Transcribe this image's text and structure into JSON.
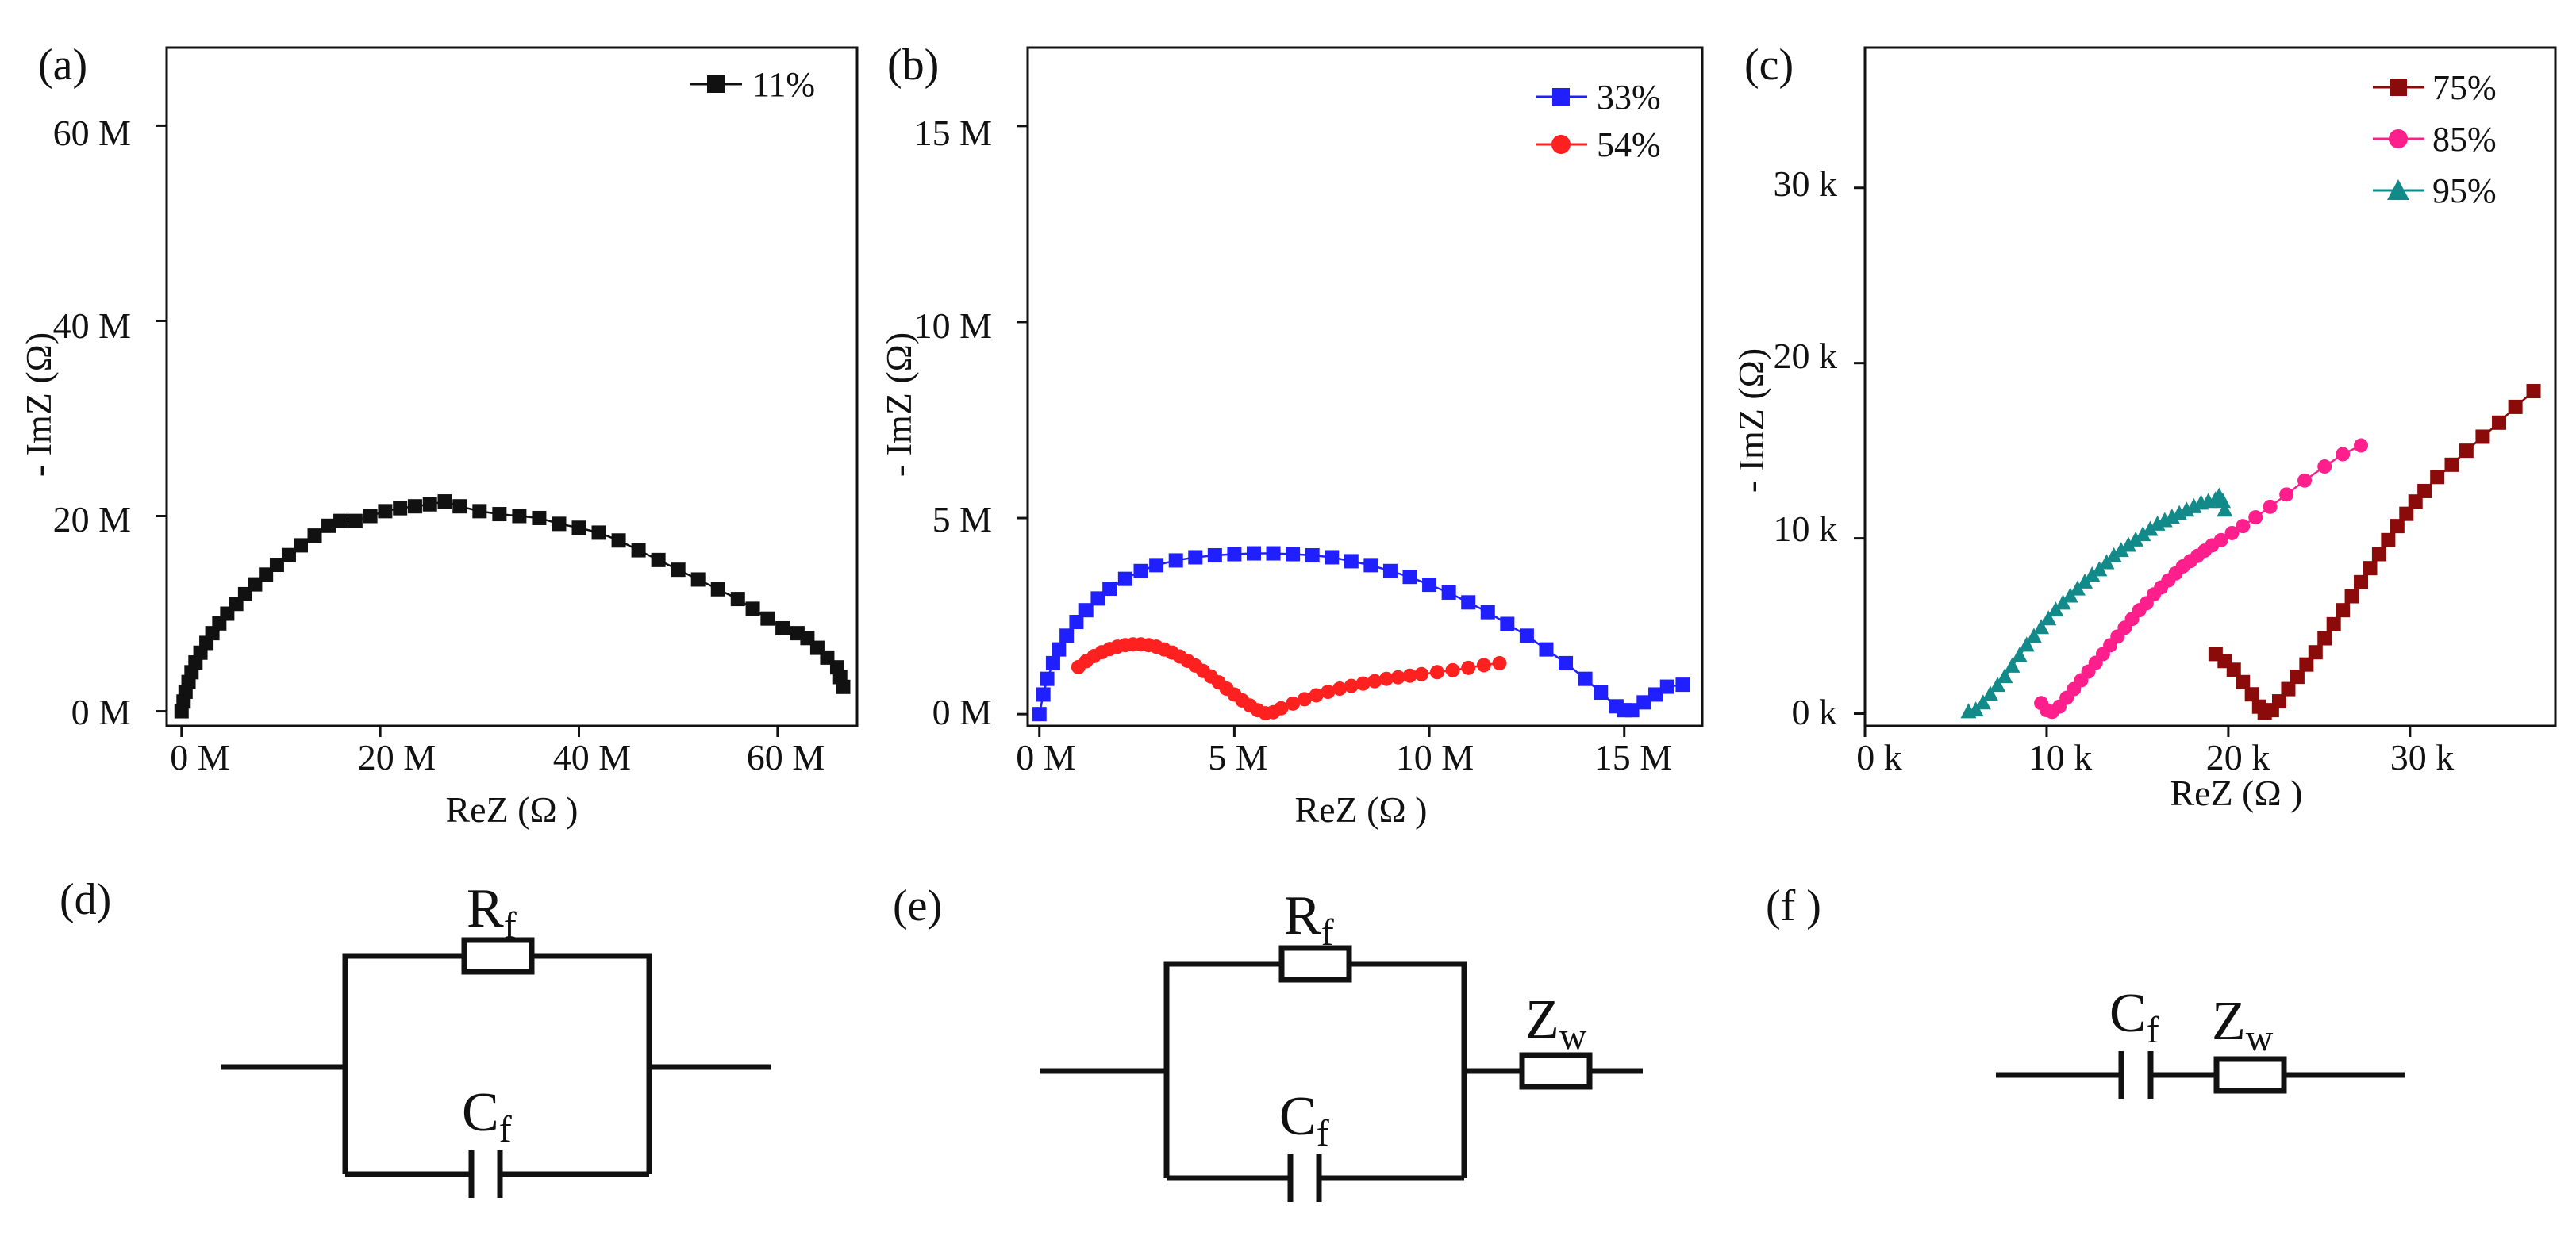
{
  "chart_data": [
    {
      "type": "scatter",
      "panel_label": "(a)",
      "xlabel": "ReZ (Ω )",
      "ylabel": "- ImZ (Ω)",
      "xlim": [
        -1.5,
        68
      ],
      "ylim": [
        -1.5,
        68
      ],
      "xticks": [
        0,
        20,
        40,
        60
      ],
      "xtick_labels": [
        "0 M",
        "20 M",
        "40 M",
        "60 M"
      ],
      "yticks": [
        0,
        20,
        40,
        60
      ],
      "ytick_labels": [
        "0 M",
        "20 M",
        "40 M",
        "60 M"
      ],
      "units": "MΩ",
      "series": [
        {
          "name": "11%",
          "label": "11%",
          "legend_position": "top-right",
          "color": "#111111",
          "marker": "square",
          "points": [
            [
              0,
              0
            ],
            [
              0.2,
              1
            ],
            [
              0.4,
              2
            ],
            [
              0.7,
              3
            ],
            [
              1,
              4
            ],
            [
              1.4,
              5
            ],
            [
              1.9,
              6
            ],
            [
              2.5,
              7
            ],
            [
              3.1,
              8
            ],
            [
              3.8,
              9
            ],
            [
              4.6,
              10
            ],
            [
              5.5,
              11
            ],
            [
              6.4,
              12
            ],
            [
              7.4,
              13
            ],
            [
              8.5,
              14
            ],
            [
              9.6,
              15
            ],
            [
              10.8,
              16
            ],
            [
              12,
              17
            ],
            [
              13.4,
              18
            ],
            [
              14.8,
              19
            ],
            [
              16,
              19.5
            ],
            [
              17.5,
              19.5
            ],
            [
              19,
              20
            ],
            [
              20.5,
              20.5
            ],
            [
              22,
              20.8
            ],
            [
              23.5,
              21
            ],
            [
              25,
              21.2
            ],
            [
              26.5,
              21.5
            ],
            [
              28,
              21
            ],
            [
              30,
              20.5
            ],
            [
              32,
              20.2
            ],
            [
              34,
              20
            ],
            [
              36,
              19.8
            ],
            [
              38,
              19.2
            ],
            [
              40,
              18.8
            ],
            [
              42,
              18.3
            ],
            [
              44,
              17.5
            ],
            [
              46,
              16.5
            ],
            [
              48,
              15.5
            ],
            [
              50,
              14.5
            ],
            [
              52,
              13.5
            ],
            [
              54,
              12.5
            ],
            [
              56,
              11.5
            ],
            [
              57.5,
              10.5
            ],
            [
              59,
              9.5
            ],
            [
              60.5,
              8.5
            ],
            [
              62,
              8
            ],
            [
              63,
              7.5
            ],
            [
              64,
              6.5
            ],
            [
              65,
              5.5
            ],
            [
              66,
              4.5
            ],
            [
              66.3,
              3.5
            ],
            [
              66.6,
              2.5
            ]
          ]
        }
      ]
    },
    {
      "type": "scatter",
      "panel_label": "(b)",
      "xlabel": "ReZ (Ω )",
      "ylabel": "- ImZ (Ω)",
      "xlim": [
        -0.3,
        17
      ],
      "ylim": [
        -0.3,
        17
      ],
      "xticks": [
        0,
        5,
        10,
        15
      ],
      "xtick_labels": [
        "0 M",
        "5 M",
        "10 M",
        "15 M"
      ],
      "yticks": [
        0,
        5,
        10,
        15
      ],
      "ytick_labels": [
        "0 M",
        "5 M",
        "10 M",
        "15 M"
      ],
      "units": "MΩ",
      "series": [
        {
          "name": "33%",
          "label": "33%",
          "color": "#1f1fff",
          "marker": "square",
          "points": [
            [
              0,
              0
            ],
            [
              0.1,
              0.5
            ],
            [
              0.2,
              0.9
            ],
            [
              0.35,
              1.3
            ],
            [
              0.5,
              1.65
            ],
            [
              0.7,
              2
            ],
            [
              0.95,
              2.35
            ],
            [
              1.2,
              2.65
            ],
            [
              1.5,
              2.95
            ],
            [
              1.8,
              3.2
            ],
            [
              2.2,
              3.45
            ],
            [
              2.6,
              3.65
            ],
            [
              3,
              3.8
            ],
            [
              3.5,
              3.92
            ],
            [
              4,
              4.0
            ],
            [
              4.5,
              4.05
            ],
            [
              5,
              4.08
            ],
            [
              5.5,
              4.1
            ],
            [
              6,
              4.1
            ],
            [
              6.5,
              4.08
            ],
            [
              7,
              4.05
            ],
            [
              7.5,
              4.0
            ],
            [
              8,
              3.9
            ],
            [
              8.5,
              3.8
            ],
            [
              9,
              3.65
            ],
            [
              9.5,
              3.5
            ],
            [
              10,
              3.3
            ],
            [
              10.5,
              3.1
            ],
            [
              11,
              2.85
            ],
            [
              11.5,
              2.6
            ],
            [
              12,
              2.3
            ],
            [
              12.5,
              2.0
            ],
            [
              13,
              1.65
            ],
            [
              13.5,
              1.3
            ],
            [
              14,
              0.9
            ],
            [
              14.4,
              0.55
            ],
            [
              14.8,
              0.2
            ],
            [
              15,
              0.1
            ],
            [
              15.2,
              0.1
            ],
            [
              15.5,
              0.3
            ],
            [
              15.8,
              0.5
            ],
            [
              16.1,
              0.7
            ],
            [
              16.5,
              0.75
            ]
          ]
        },
        {
          "name": "54%",
          "label": "54%",
          "color": "#ff2020",
          "marker": "circle",
          "points": [
            [
              1,
              1.2
            ],
            [
              1.2,
              1.35
            ],
            [
              1.4,
              1.48
            ],
            [
              1.6,
              1.58
            ],
            [
              1.8,
              1.66
            ],
            [
              2.0,
              1.72
            ],
            [
              2.2,
              1.76
            ],
            [
              2.4,
              1.78
            ],
            [
              2.6,
              1.78
            ],
            [
              2.8,
              1.76
            ],
            [
              3.0,
              1.72
            ],
            [
              3.2,
              1.65
            ],
            [
              3.4,
              1.57
            ],
            [
              3.6,
              1.47
            ],
            [
              3.8,
              1.36
            ],
            [
              4.0,
              1.24
            ],
            [
              4.2,
              1.1
            ],
            [
              4.4,
              0.96
            ],
            [
              4.6,
              0.81
            ],
            [
              4.8,
              0.65
            ],
            [
              5.0,
              0.5
            ],
            [
              5.2,
              0.35
            ],
            [
              5.4,
              0.22
            ],
            [
              5.6,
              0.1
            ],
            [
              5.8,
              0.02
            ],
            [
              6.0,
              0.05
            ],
            [
              6.2,
              0.15
            ],
            [
              6.5,
              0.27
            ],
            [
              6.8,
              0.38
            ],
            [
              7.1,
              0.48
            ],
            [
              7.4,
              0.57
            ],
            [
              7.7,
              0.65
            ],
            [
              8.0,
              0.72
            ],
            [
              8.3,
              0.78
            ],
            [
              8.6,
              0.84
            ],
            [
              8.9,
              0.9
            ],
            [
              9.2,
              0.94
            ],
            [
              9.5,
              0.98
            ],
            [
              9.8,
              1.02
            ],
            [
              10.2,
              1.07
            ],
            [
              10.6,
              1.12
            ],
            [
              11.0,
              1.18
            ],
            [
              11.4,
              1.25
            ],
            [
              11.8,
              1.3
            ]
          ]
        }
      ]
    },
    {
      "type": "scatter",
      "panel_label": "(c)",
      "xlabel": "ReZ (Ω )",
      "ylabel": "- ImZ (Ω)",
      "xlim": [
        0,
        38
      ],
      "ylim": [
        -0.7,
        38
      ],
      "xticks": [
        0,
        10,
        20,
        30
      ],
      "xtick_labels": [
        "0 k",
        "10 k",
        "20 k",
        "30 k"
      ],
      "yticks": [
        0,
        10,
        20,
        30
      ],
      "ytick_labels": [
        "0 k",
        "10 k",
        "20 k",
        "30 k"
      ],
      "units": "kΩ",
      "series": [
        {
          "name": "75%",
          "label": "75%",
          "color": "#8b0a0a",
          "marker": "square",
          "points": [
            [
              19.3,
              3.4
            ],
            [
              19.8,
              3.0
            ],
            [
              20.3,
              2.5
            ],
            [
              20.8,
              1.8
            ],
            [
              21.3,
              1.1
            ],
            [
              21.7,
              0.4
            ],
            [
              22.0,
              0.05
            ],
            [
              22.4,
              0.2
            ],
            [
              22.8,
              0.7
            ],
            [
              23.3,
              1.4
            ],
            [
              23.8,
              2.1
            ],
            [
              24.3,
              2.8
            ],
            [
              24.8,
              3.5
            ],
            [
              25.3,
              4.3
            ],
            [
              25.8,
              5.1
            ],
            [
              26.3,
              5.9
            ],
            [
              26.8,
              6.7
            ],
            [
              27.3,
              7.5
            ],
            [
              27.8,
              8.3
            ],
            [
              28.3,
              9.1
            ],
            [
              28.8,
              9.9
            ],
            [
              29.3,
              10.7
            ],
            [
              29.8,
              11.4
            ],
            [
              30.3,
              12.1
            ],
            [
              30.8,
              12.7
            ],
            [
              31.5,
              13.5
            ],
            [
              32.3,
              14.2
            ],
            [
              33.1,
              15.0
            ],
            [
              34.0,
              15.8
            ],
            [
              34.9,
              16.6
            ],
            [
              35.8,
              17.5
            ],
            [
              36.8,
              18.4
            ]
          ]
        },
        {
          "name": "85%",
          "label": "85%",
          "color": "#ff1f8c",
          "marker": "circle",
          "points": [
            [
              9.7,
              0.6
            ],
            [
              10.0,
              0.2
            ],
            [
              10.3,
              0.1
            ],
            [
              10.7,
              0.4
            ],
            [
              11.1,
              0.9
            ],
            [
              11.5,
              1.4
            ],
            [
              11.9,
              1.9
            ],
            [
              12.3,
              2.4
            ],
            [
              12.7,
              2.9
            ],
            [
              13.1,
              3.4
            ],
            [
              13.5,
              3.9
            ],
            [
              13.9,
              4.4
            ],
            [
              14.3,
              4.9
            ],
            [
              14.7,
              5.4
            ],
            [
              15.1,
              5.9
            ],
            [
              15.5,
              6.3
            ],
            [
              15.9,
              6.8
            ],
            [
              16.3,
              7.2
            ],
            [
              16.7,
              7.6
            ],
            [
              17.1,
              8.0
            ],
            [
              17.5,
              8.4
            ],
            [
              17.9,
              8.7
            ],
            [
              18.3,
              9.0
            ],
            [
              18.7,
              9.3
            ],
            [
              19.1,
              9.6
            ],
            [
              19.6,
              9.9
            ],
            [
              20.2,
              10.3
            ],
            [
              20.8,
              10.7
            ],
            [
              21.5,
              11.2
            ],
            [
              22.3,
              11.8
            ],
            [
              23.2,
              12.5
            ],
            [
              24.2,
              13.3
            ],
            [
              25.3,
              14.1
            ],
            [
              26.3,
              14.8
            ],
            [
              27.3,
              15.3
            ]
          ]
        },
        {
          "name": "95%",
          "label": "95%",
          "color": "#138a8a",
          "marker": "triangle",
          "points": [
            [
              5.7,
              0.1
            ],
            [
              6.1,
              0.2
            ],
            [
              6.5,
              0.6
            ],
            [
              6.9,
              1.1
            ],
            [
              7.3,
              1.6
            ],
            [
              7.7,
              2.1
            ],
            [
              8.1,
              2.7
            ],
            [
              8.5,
              3.3
            ],
            [
              8.9,
              3.9
            ],
            [
              9.3,
              4.4
            ],
            [
              9.7,
              4.9
            ],
            [
              10.1,
              5.4
            ],
            [
              10.5,
              5.9
            ],
            [
              10.9,
              6.3
            ],
            [
              11.3,
              6.7
            ],
            [
              11.7,
              7.1
            ],
            [
              12.1,
              7.5
            ],
            [
              12.5,
              7.9
            ],
            [
              12.9,
              8.2
            ],
            [
              13.3,
              8.6
            ],
            [
              13.7,
              9.0
            ],
            [
              14.1,
              9.3
            ],
            [
              14.5,
              9.6
            ],
            [
              14.9,
              9.9
            ],
            [
              15.3,
              10.2
            ],
            [
              15.7,
              10.5
            ],
            [
              16.1,
              10.8
            ],
            [
              16.5,
              11.0
            ],
            [
              16.9,
              11.2
            ],
            [
              17.3,
              11.4
            ],
            [
              17.7,
              11.6
            ],
            [
              18.1,
              11.8
            ],
            [
              18.5,
              12.0
            ],
            [
              18.9,
              12.1
            ],
            [
              19.3,
              12.2
            ],
            [
              19.5,
              12.4
            ],
            [
              19.7,
              12.1
            ],
            [
              19.8,
              11.6
            ]
          ]
        }
      ]
    }
  ],
  "circuits": [
    {
      "panel_label": "(d)",
      "labels": {
        "r": "R",
        "r_sub": "f",
        "c": "C",
        "c_sub": "f"
      }
    },
    {
      "panel_label": "(e)",
      "labels": {
        "r": "R",
        "r_sub": "f",
        "c": "C",
        "c_sub": "f",
        "z": "Z",
        "z_sub": "w"
      }
    },
    {
      "panel_label": "(f )",
      "labels": {
        "c": "C",
        "c_sub": "f",
        "z": "Z",
        "z_sub": "w"
      }
    }
  ]
}
